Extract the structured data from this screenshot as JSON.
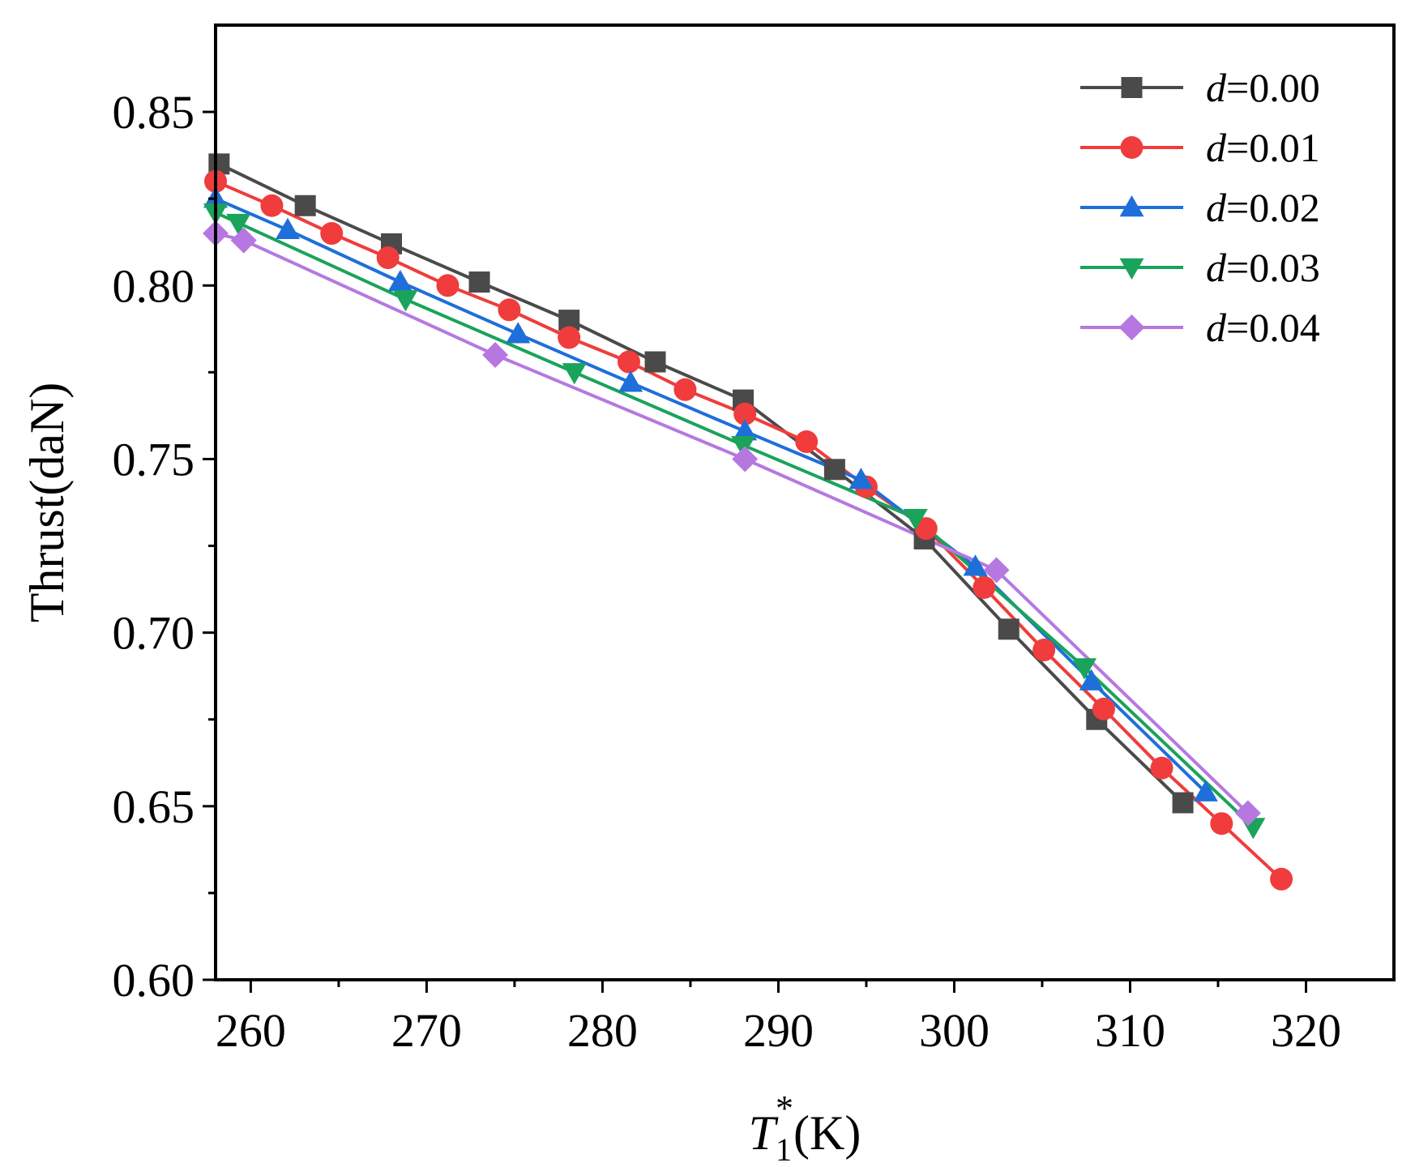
{
  "chart_data": {
    "type": "line",
    "title": "",
    "xlabel": {
      "main": "T",
      "sub": "1",
      "sup": "*",
      "unit": "(K)"
    },
    "ylabel": "Thrust(daN)",
    "xlim": [
      258,
      325
    ],
    "ylim": [
      0.6,
      0.875
    ],
    "x_ticks": [
      260,
      270,
      280,
      290,
      300,
      310,
      320
    ],
    "x_tick_labels": [
      "260",
      "270",
      "280",
      "290",
      "300",
      "310",
      "320"
    ],
    "y_ticks": [
      0.6,
      0.65,
      0.7,
      0.75,
      0.8,
      0.85
    ],
    "y_tick_labels": [
      "0.60",
      "0.65",
      "0.70",
      "0.75",
      "0.80",
      "0.85"
    ],
    "grid": false,
    "legend_position": "top-right",
    "series": [
      {
        "name": "d=0.00",
        "prefix": "d",
        "suffix": "=0.00",
        "color": "#4a4a4a",
        "marker": "square",
        "points": [
          [
            258.2,
            0.835
          ],
          [
            263.1,
            0.823
          ],
          [
            268.0,
            0.812
          ],
          [
            273.0,
            0.801
          ],
          [
            278.1,
            0.79
          ],
          [
            283.0,
            0.778
          ],
          [
            288.0,
            0.767
          ],
          [
            293.2,
            0.747
          ],
          [
            298.3,
            0.727
          ],
          [
            303.1,
            0.701
          ],
          [
            308.1,
            0.675
          ],
          [
            313.0,
            0.651
          ]
        ]
      },
      {
        "name": "d=0.01",
        "prefix": "d",
        "suffix": "=0.01",
        "color": "#f03c3c",
        "marker": "circle",
        "points": [
          [
            258.0,
            0.83
          ],
          [
            261.2,
            0.823
          ],
          [
            264.6,
            0.815
          ],
          [
            267.8,
            0.808
          ],
          [
            271.2,
            0.8
          ],
          [
            274.7,
            0.793
          ],
          [
            278.1,
            0.785
          ],
          [
            281.5,
            0.778
          ],
          [
            284.7,
            0.77
          ],
          [
            288.1,
            0.763
          ],
          [
            291.6,
            0.755
          ],
          [
            295.0,
            0.742
          ],
          [
            298.4,
            0.73
          ],
          [
            301.7,
            0.713
          ],
          [
            305.1,
            0.695
          ],
          [
            308.5,
            0.678
          ],
          [
            311.8,
            0.661
          ],
          [
            315.2,
            0.645
          ],
          [
            318.6,
            0.629
          ]
        ]
      },
      {
        "name": "d=0.02",
        "prefix": "d",
        "suffix": "=0.02",
        "color": "#1e6fd9",
        "marker": "triangle-up",
        "points": [
          [
            258.0,
            0.825
          ],
          [
            262.1,
            0.816
          ],
          [
            268.5,
            0.801
          ],
          [
            275.2,
            0.786
          ],
          [
            281.6,
            0.772
          ],
          [
            288.1,
            0.758
          ],
          [
            294.7,
            0.744
          ],
          [
            301.2,
            0.719
          ],
          [
            307.8,
            0.686
          ],
          [
            314.3,
            0.654
          ]
        ]
      },
      {
        "name": "d=0.03",
        "prefix": "d",
        "suffix": "=0.03",
        "color": "#1aa35a",
        "marker": "triangle-down",
        "points": [
          [
            258.0,
            0.821
          ],
          [
            259.3,
            0.818
          ],
          [
            268.8,
            0.796
          ],
          [
            278.4,
            0.775
          ],
          [
            288.0,
            0.754
          ],
          [
            297.8,
            0.733
          ],
          [
            307.4,
            0.69
          ],
          [
            317.0,
            0.644
          ]
        ]
      },
      {
        "name": "d=0.04",
        "prefix": "d",
        "suffix": "=0.04",
        "color": "#b678e0",
        "marker": "diamond",
        "points": [
          [
            258.0,
            0.815
          ],
          [
            259.6,
            0.813
          ],
          [
            273.9,
            0.78
          ],
          [
            288.1,
            0.75
          ],
          [
            302.4,
            0.718
          ],
          [
            316.7,
            0.648
          ]
        ]
      }
    ]
  }
}
